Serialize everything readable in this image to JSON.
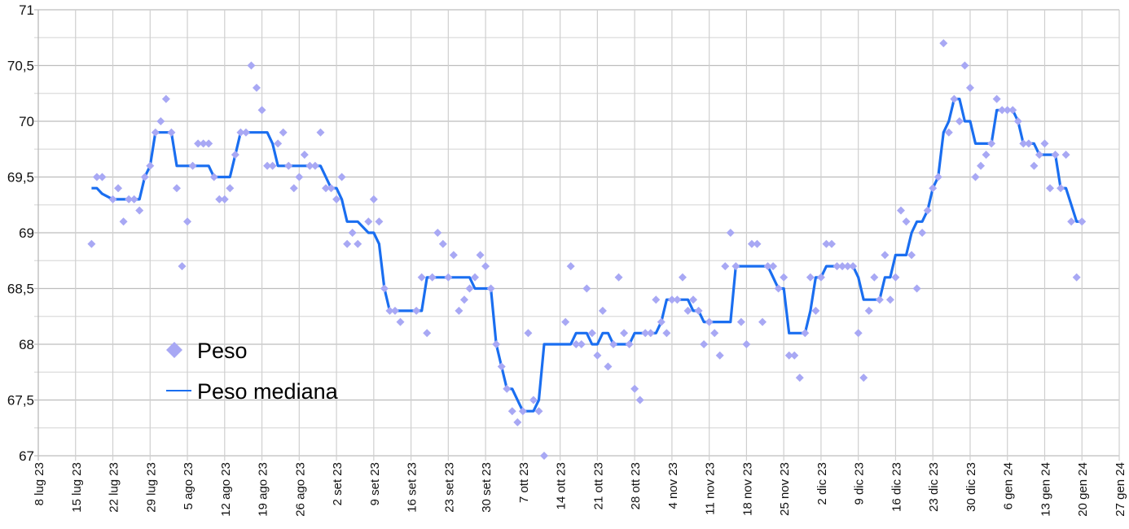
{
  "chart_data": {
    "type": "scatter",
    "title": "",
    "xlabel": "",
    "ylabel": "",
    "ylim": [
      67,
      71
    ],
    "y_major_step": 0.5,
    "y_minor_step": 0.25,
    "y_tick_labels": [
      "71",
      "70,5",
      "70",
      "69,5",
      "69",
      "68,5",
      "68",
      "67,5",
      "67"
    ],
    "x_unit": "days since 8 lug 23",
    "xlim": [
      0,
      203
    ],
    "x_tick_labels": [
      "8 lug 23",
      "15 lug 23",
      "22 lug 23",
      "29 lug 23",
      "5 ago 23",
      "12 ago 23",
      "19 ago 23",
      "26 ago 23",
      "2 set 23",
      "9 set 23",
      "16 set 23",
      "23 set 23",
      "30 set 23",
      "7 ott 23",
      "14 ott 23",
      "21 ott 23",
      "28 ott 23",
      "4 nov 23",
      "11 nov 23",
      "18 nov 23",
      "25 nov 23",
      "2 dic 23",
      "9 dic 23",
      "16 dic 23",
      "23 dic 23",
      "30 dic 23",
      "6 gen 24",
      "13 gen 24",
      "20 gen 24",
      "27 gen 24"
    ],
    "grid": true,
    "legend_position": "lower-left",
    "series": [
      {
        "name": "Peso",
        "kind": "points",
        "marker": "diamond",
        "color": "#a8a8f4",
        "x": [
          10,
          11,
          12,
          14,
          15,
          16,
          17,
          18,
          19,
          20,
          21,
          22,
          23,
          24,
          25,
          26,
          27,
          28,
          29,
          30,
          31,
          32,
          33,
          34,
          35,
          36,
          37,
          38,
          39,
          40,
          41,
          42,
          43,
          44,
          45,
          46,
          47,
          48,
          49,
          50,
          51,
          52,
          53,
          54,
          55,
          56,
          57,
          58,
          59,
          60,
          62,
          63,
          64,
          65,
          66,
          67,
          68,
          71,
          72,
          73,
          74,
          75,
          76,
          77,
          78,
          79,
          80,
          81,
          82,
          83,
          84,
          85,
          86,
          87,
          88,
          89,
          90,
          91,
          92,
          93,
          94,
          95,
          99,
          100,
          101,
          102,
          103,
          104,
          105,
          106,
          107,
          108,
          109,
          110,
          111,
          112,
          113,
          114,
          115,
          116,
          117,
          118,
          119,
          120,
          121,
          122,
          123,
          124,
          125,
          126,
          127,
          128,
          129,
          130,
          131,
          132,
          133,
          134,
          135,
          136,
          137,
          138,
          139,
          140,
          141,
          142,
          143,
          144,
          145,
          146,
          147,
          148,
          149,
          150,
          151,
          152,
          153,
          154,
          155,
          156,
          157,
          158,
          159,
          160,
          161,
          162,
          163,
          164,
          165,
          166,
          167,
          168,
          169,
          170,
          171,
          172,
          173,
          174,
          175,
          176,
          177,
          178,
          179,
          180,
          181,
          182,
          183,
          184,
          185,
          186,
          187,
          188,
          189,
          190,
          191,
          192,
          193,
          194,
          195,
          196
        ],
        "y": [
          68.9,
          69.5,
          69.5,
          69.3,
          69.4,
          69.1,
          69.3,
          69.3,
          69.2,
          69.5,
          69.6,
          69.9,
          70.0,
          70.2,
          69.9,
          69.4,
          68.7,
          69.1,
          69.6,
          69.8,
          69.8,
          69.8,
          69.5,
          69.3,
          69.3,
          69.4,
          69.7,
          69.9,
          69.9,
          70.5,
          70.3,
          70.1,
          69.6,
          69.6,
          69.8,
          69.9,
          69.6,
          69.4,
          69.5,
          69.7,
          69.6,
          69.6,
          69.9,
          69.4,
          69.4,
          69.3,
          69.5,
          68.9,
          69.0,
          68.9,
          69.1,
          69.3,
          69.1,
          68.5,
          68.3,
          68.3,
          68.2,
          68.3,
          68.6,
          68.1,
          68.6,
          69.0,
          68.9,
          68.6,
          68.8,
          68.3,
          68.4,
          68.5,
          68.6,
          68.8,
          68.7,
          68.5,
          68.0,
          67.8,
          67.6,
          67.4,
          67.3,
          67.4,
          68.1,
          67.5,
          67.4,
          67.0,
          68.2,
          68.7,
          68.0,
          68.0,
          68.5,
          68.1,
          67.9,
          68.3,
          67.8,
          68.0,
          68.6,
          68.1,
          68.0,
          67.6,
          67.5,
          68.1,
          68.1,
          68.4,
          68.2,
          68.1,
          68.4,
          68.4,
          68.6,
          68.3,
          68.4,
          68.3,
          68.0,
          68.2,
          68.1,
          67.9,
          68.7,
          69.0,
          68.7,
          68.2,
          68.0,
          68.9,
          68.9,
          68.2,
          68.7,
          68.7,
          68.5,
          68.6,
          67.9,
          67.9,
          67.7,
          68.1,
          68.6,
          68.3,
          68.6,
          68.9,
          68.9,
          68.7,
          68.7,
          68.7,
          68.7,
          68.1,
          67.7,
          68.3,
          68.6,
          68.4,
          68.8,
          68.4,
          68.6,
          69.2,
          69.1,
          68.8,
          68.5,
          69.0,
          69.2,
          69.4,
          69.5,
          70.7,
          69.9,
          70.2,
          70.0,
          70.5,
          70.3,
          69.5,
          69.6,
          69.7,
          69.8,
          70.2,
          70.1,
          70.1,
          70.1,
          70.0,
          69.8,
          69.8,
          69.6,
          69.7,
          69.8,
          69.4,
          69.7,
          69.4,
          69.7,
          69.1,
          68.6,
          69.1
        ]
      },
      {
        "name": "Peso mediana",
        "kind": "line",
        "color": "#1a6ef0",
        "rolling_median_window": 7
      }
    ]
  }
}
